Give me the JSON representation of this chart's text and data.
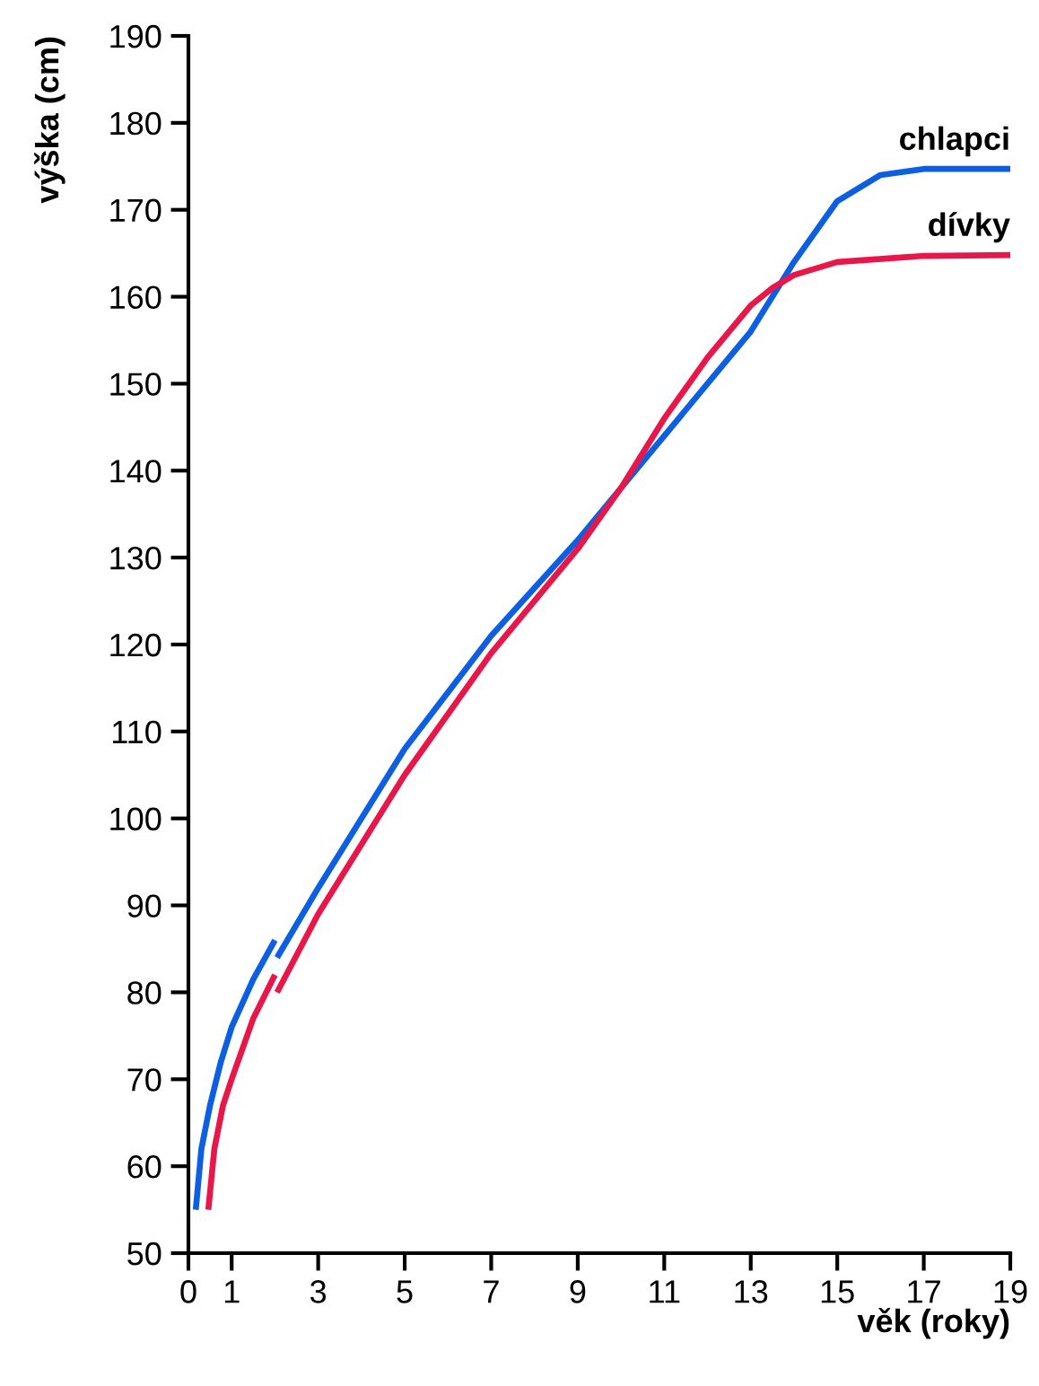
{
  "chart_data": {
    "type": "line",
    "xlabel": "věk (roky)",
    "ylabel": "výška (cm)",
    "xlim": [
      0,
      19
    ],
    "ylim": [
      50,
      190
    ],
    "xticks": [
      0,
      1,
      3,
      5,
      7,
      9,
      11,
      13,
      15,
      17,
      19
    ],
    "yticks": [
      50,
      60,
      70,
      80,
      90,
      100,
      110,
      120,
      130,
      140,
      150,
      160,
      170,
      180,
      190
    ],
    "grid": false,
    "legend": false,
    "marker": "none",
    "line_style": "solid",
    "series": [
      {
        "name": "chlapci",
        "color": "#0c5fe0",
        "x": [
          0.17,
          0.3,
          0.5,
          0.75,
          1,
          1.5,
          2,
          2.02,
          2.05,
          3,
          5,
          7,
          9,
          11,
          12,
          13,
          14,
          15,
          16,
          17,
          19
        ],
        "values": [
          55,
          62,
          67,
          72,
          76,
          81.5,
          86,
          null,
          84,
          92,
          108,
          121,
          132,
          144,
          150,
          156,
          164,
          171,
          174,
          174.7,
          174.7
        ]
      },
      {
        "name": "dívky",
        "color": "#e8174a",
        "x": [
          0.46,
          0.6,
          0.8,
          1,
          1.5,
          2,
          2.02,
          2.05,
          3,
          5,
          7,
          9,
          10,
          11,
          12,
          13,
          13.5,
          14,
          15,
          17,
          19
        ],
        "values": [
          55,
          62,
          67,
          70,
          77,
          82,
          null,
          80,
          89,
          105,
          119,
          131,
          138,
          146,
          153,
          159,
          161,
          162.5,
          164,
          164.7,
          164.8
        ]
      }
    ]
  }
}
